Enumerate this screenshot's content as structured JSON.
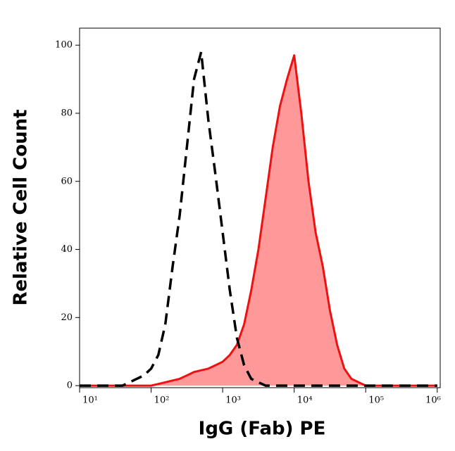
{
  "chart_data": {
    "type": "histogram-overlay",
    "xlabel": "IgG (Fab) PE",
    "ylabel": "Relative Cell Count",
    "xscale": "log",
    "xlim": [
      10,
      1100000
    ],
    "ylim": [
      -0.6,
      105
    ],
    "xticks": [
      {
        "value": 10,
        "label": "10¹"
      },
      {
        "value": 100,
        "label": "10²"
      },
      {
        "value": 1000,
        "label": "10³"
      },
      {
        "value": 10000,
        "label": "10⁴"
      },
      {
        "value": 100000,
        "label": "10⁵"
      },
      {
        "value": 1000000,
        "label": "10⁶"
      }
    ],
    "yticks": [
      0,
      20,
      40,
      60,
      80,
      100
    ],
    "x": [
      10,
      32,
      40,
      50,
      63,
      79,
      100,
      126,
      158,
      200,
      251,
      316,
      398,
      501,
      631,
      794,
      1000,
      1259,
      1585,
      1995,
      2512,
      3162,
      3981,
      5012,
      6310,
      7943,
      10000,
      12589,
      15849,
      19953,
      25119,
      31623,
      39811,
      50119,
      63096,
      79433,
      100000,
      125893,
      158489,
      199526,
      251189,
      316228,
      1000000
    ],
    "series": [
      {
        "color": "#ff9999",
        "line_color": "#ee1111",
        "fill": true,
        "values": [
          0,
          0,
          0,
          0,
          0,
          0,
          0,
          0.5,
          1,
          1.5,
          2,
          3,
          4,
          4.5,
          5,
          6,
          7,
          9,
          12,
          18,
          28,
          40,
          55,
          70,
          82,
          90,
          97,
          80,
          60,
          45,
          35,
          22,
          12,
          5,
          2,
          1,
          0,
          0,
          0,
          0,
          0,
          0,
          0
        ]
      },
      {
        "color": "#000000",
        "dashed": true,
        "values": [
          0,
          0,
          0,
          1,
          2,
          3,
          5,
          9,
          18,
          35,
          50,
          70,
          90,
          98,
          78,
          62,
          45,
          28,
          14,
          6,
          2,
          1,
          0,
          0,
          0,
          0,
          0,
          0,
          0,
          0,
          0,
          0,
          0,
          0,
          0,
          0,
          0,
          0,
          0,
          0,
          0,
          0,
          0
        ]
      }
    ]
  }
}
